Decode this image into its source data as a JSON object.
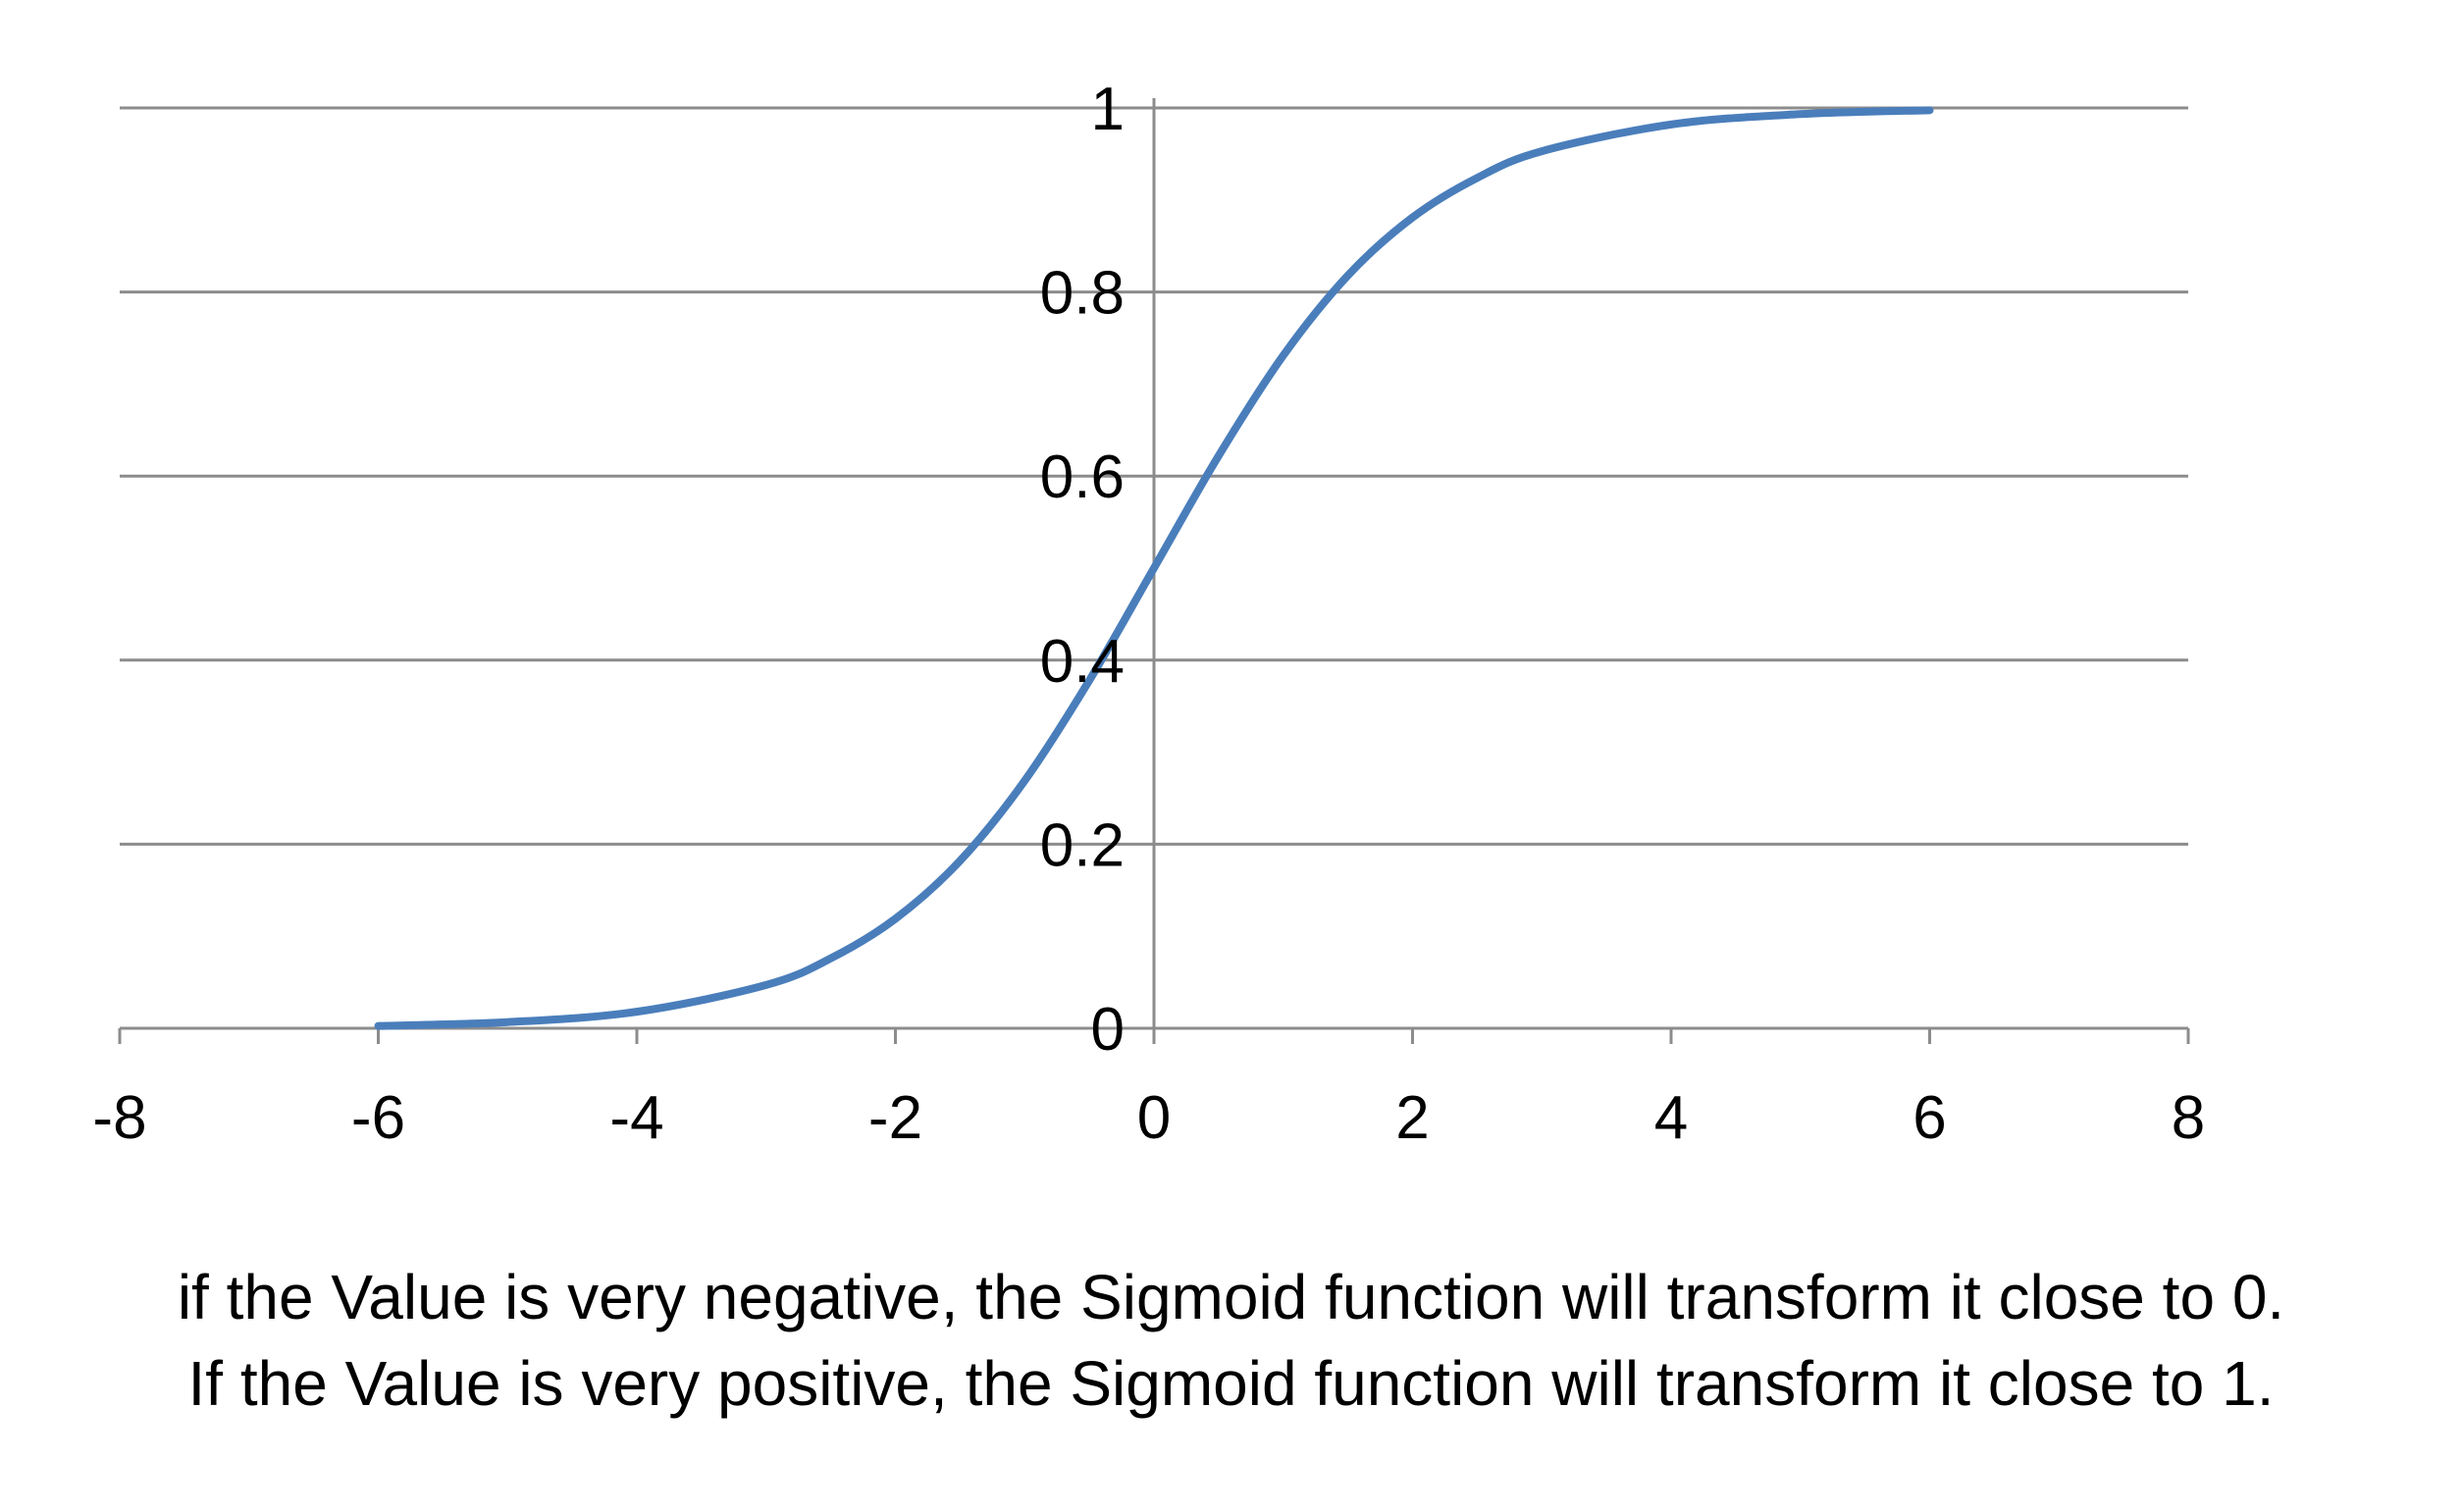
{
  "chart_data": {
    "type": "line",
    "title": "",
    "xlabel": "",
    "ylabel": "",
    "xlim": [
      -8,
      8
    ],
    "ylim": [
      0,
      1
    ],
    "x_ticks": [
      -8,
      -6,
      -4,
      -2,
      0,
      2,
      4,
      6,
      8
    ],
    "x_tick_labels": [
      "-8",
      "-6",
      "-4",
      "-2",
      "0",
      "2",
      "4",
      "6",
      "8"
    ],
    "y_ticks": [
      0,
      0.2,
      0.4,
      0.6,
      0.8,
      1
    ],
    "y_tick_labels": [
      "0",
      "0.2",
      "0.4",
      "0.6",
      "0.8",
      "1"
    ],
    "grid": "horizontal",
    "legend": "none",
    "colors": {
      "line": "#4a7ebb",
      "grid": "#8c8c8c",
      "axis": "#8c8c8c"
    },
    "series": [
      {
        "x": [
          -6,
          -5,
          -4,
          -3,
          -2.5,
          -2,
          -1.5,
          -1,
          -0.5,
          0,
          0.5,
          1,
          1.5,
          2,
          2.5,
          3,
          4,
          5,
          6
        ],
        "y": [
          0.0025,
          0.0067,
          0.018,
          0.047,
          0.076,
          0.119,
          0.182,
          0.269,
          0.378,
          0.5,
          0.622,
          0.731,
          0.818,
          0.881,
          0.924,
          0.953,
          0.982,
          0.9933,
          0.9975
        ]
      }
    ]
  },
  "caption": {
    "line1": "if the Value is very negative, the Sigmoid function will transform it close to 0.",
    "line2": "If the Value is very positive, the Sigmoid function will transform it close to 1."
  }
}
